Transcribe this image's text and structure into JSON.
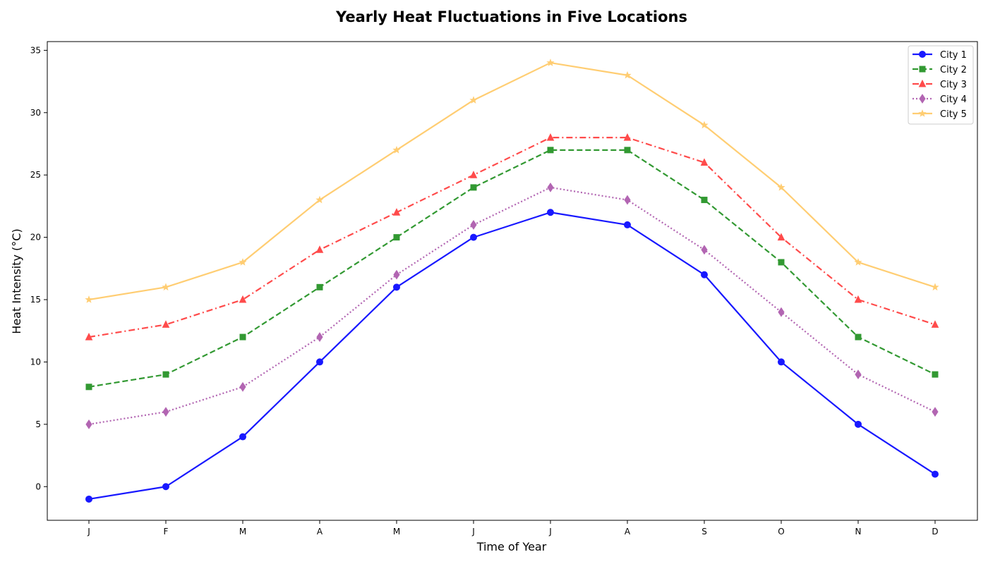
{
  "chart_data": {
    "type": "line",
    "title": "Yearly Heat Fluctuations in Five Locations",
    "xlabel": "Time of Year",
    "ylabel": "Heat Intensity (°C)",
    "categories": [
      "J",
      "F",
      "M",
      "A",
      "M",
      "J",
      "J",
      "A",
      "S",
      "O",
      "N",
      "D"
    ],
    "ylim": [
      -2.7,
      35.7
    ],
    "yticks": [
      0,
      5,
      10,
      15,
      20,
      25,
      30,
      35
    ],
    "grid": false,
    "legend_position": "top-right",
    "series": [
      {
        "name": "City 1",
        "color": "#0000ff",
        "values": [
          -1,
          0,
          4,
          10,
          16,
          20,
          22,
          21,
          17,
          10,
          5,
          1
        ],
        "line_style": "solid",
        "marker": "circle"
      },
      {
        "name": "City 2",
        "color": "#008000",
        "values": [
          8,
          9,
          12,
          16,
          20,
          24,
          27,
          27,
          23,
          18,
          12,
          9
        ],
        "line_style": "dashed",
        "marker": "square"
      },
      {
        "name": "City 3",
        "color": "#ff0000",
        "values": [
          12,
          13,
          15,
          19,
          22,
          25,
          28,
          28,
          26,
          20,
          15,
          13
        ],
        "line_style": "dashdot",
        "marker": "triangle"
      },
      {
        "name": "City 4",
        "color": "#800080",
        "values": [
          5,
          6,
          8,
          12,
          17,
          21,
          24,
          23,
          19,
          14,
          9,
          6
        ],
        "line_style": "dotted",
        "marker": "diamond"
      },
      {
        "name": "City 5",
        "color": "#ffa500",
        "values": [
          15,
          16,
          18,
          23,
          27,
          31,
          34,
          33,
          29,
          24,
          18,
          16
        ],
        "line_style": "solid",
        "marker": "star"
      }
    ]
  }
}
